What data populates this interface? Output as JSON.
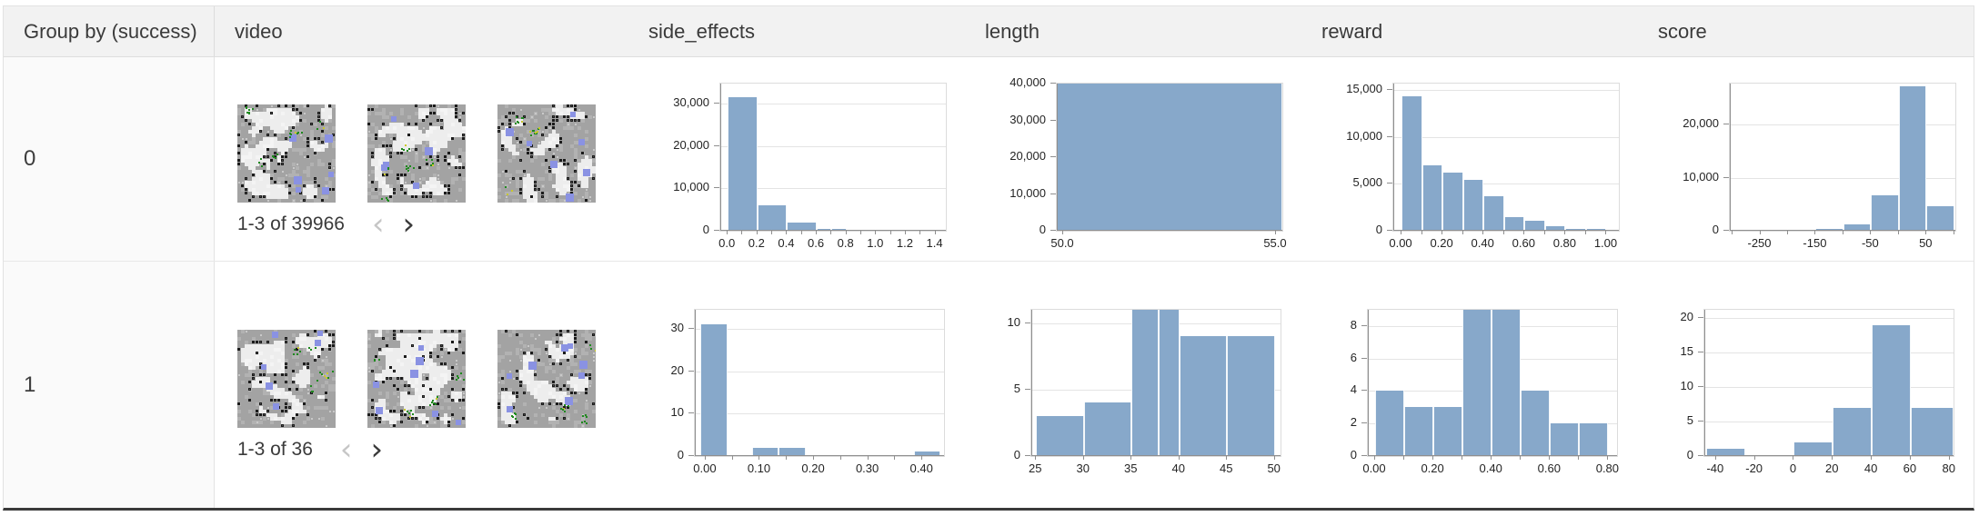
{
  "table": {
    "columns": [
      "Group by (success)",
      "video",
      "side_effects",
      "length",
      "reward",
      "score"
    ],
    "rows": [
      {
        "group": "0",
        "video": {
          "pagination": "1-3 of 39966",
          "thumbnails": 3,
          "prev_enabled": false,
          "next_enabled": true
        }
      },
      {
        "group": "1",
        "video": {
          "pagination": "1-3 of 36",
          "thumbnails": 3,
          "prev_enabled": false,
          "next_enabled": true
        }
      }
    ]
  },
  "icons": {
    "chevron_left": "‹",
    "chevron_right": "›"
  },
  "colors": {
    "histogram_bar": "#87a8ca",
    "header_bg": "#f2f2f2",
    "thumb_gray": "#a3a3a3",
    "thumb_light": "#ededed",
    "thumb_blue": "#8a92e3",
    "thumb_green": "#1f8a1f",
    "thumb_black": "#1b1b1b"
  },
  "chart_data": [
    {
      "type": "bar",
      "group": "0",
      "column": "side_effects",
      "xdomain": [
        -0.05,
        1.47
      ],
      "xticks": [
        [
          0.0,
          "0.0"
        ],
        [
          0.2,
          "0.2"
        ],
        [
          0.4,
          "0.4"
        ],
        [
          0.6,
          "0.6"
        ],
        [
          0.8,
          "0.8"
        ],
        [
          1.0,
          "1.0"
        ],
        [
          1.2,
          "1.2"
        ],
        [
          1.4,
          "1.4"
        ]
      ],
      "minor_xticks": [
        0.1,
        0.3,
        0.5,
        0.7,
        0.9,
        1.1,
        1.3
      ],
      "ymax": 34700,
      "yticks": [
        [
          0,
          "0"
        ],
        [
          10000,
          "10,000"
        ],
        [
          20000,
          "20,000"
        ],
        [
          30000,
          "30,000"
        ]
      ],
      "bars": [
        [
          0,
          0.2,
          31500
        ],
        [
          0.2,
          0.4,
          6100
        ],
        [
          0.4,
          0.6,
          2000
        ],
        [
          0.6,
          0.7,
          350
        ],
        [
          0.7,
          0.8,
          500
        ],
        [
          0.8,
          1.0,
          150
        ],
        [
          1.0,
          1.2,
          80
        ],
        [
          1.2,
          1.4,
          60
        ]
      ]
    },
    {
      "type": "bar",
      "group": "0",
      "column": "length",
      "xdomain": [
        49.85,
        55.15
      ],
      "xticks": [
        [
          50,
          "50.0"
        ],
        [
          55,
          "55.0"
        ]
      ],
      "minor_xticks": [],
      "ymax": 40000,
      "yticks": [
        [
          0,
          "0"
        ],
        [
          10000,
          "10,000"
        ],
        [
          20000,
          "20,000"
        ],
        [
          30000,
          "30,000"
        ],
        [
          40000,
          "40,000"
        ]
      ],
      "bars": [
        [
          49.85,
          55.15,
          40000
        ]
      ]
    },
    {
      "type": "bar",
      "group": "0",
      "column": "reward",
      "xdomain": [
        -0.04,
        1.06
      ],
      "xticks": [
        [
          0,
          "0.00"
        ],
        [
          0.2,
          "0.20"
        ],
        [
          0.4,
          "0.40"
        ],
        [
          0.6,
          "0.60"
        ],
        [
          0.8,
          "0.80"
        ],
        [
          1.0,
          "1.00"
        ]
      ],
      "minor_xticks": [
        0.1,
        0.3,
        0.5,
        0.7,
        0.9
      ],
      "ymax": 15700,
      "yticks": [
        [
          0,
          "0"
        ],
        [
          5000,
          "5,000"
        ],
        [
          10000,
          "10,000"
        ],
        [
          15000,
          "15,000"
        ]
      ],
      "bars": [
        [
          0,
          0.1,
          14300
        ],
        [
          0.1,
          0.2,
          7000
        ],
        [
          0.2,
          0.3,
          6200
        ],
        [
          0.3,
          0.4,
          5400
        ],
        [
          0.4,
          0.5,
          3700
        ],
        [
          0.5,
          0.6,
          1500
        ],
        [
          0.6,
          0.7,
          1100
        ],
        [
          0.7,
          0.8,
          500
        ],
        [
          0.8,
          0.9,
          200
        ],
        [
          0.9,
          1.0,
          150
        ]
      ]
    },
    {
      "type": "bar",
      "group": "0",
      "column": "score",
      "xdomain": [
        -305,
        102
      ],
      "xticks": [
        [
          -250,
          "-250"
        ],
        [
          -150,
          "-150"
        ],
        [
          -50,
          "-50"
        ],
        [
          50,
          "50"
        ]
      ],
      "minor_xticks": [
        -300,
        -200,
        -100,
        0,
        100
      ],
      "ymax": 27700,
      "yticks": [
        [
          0,
          "0"
        ],
        [
          10000,
          "10,000"
        ],
        [
          20000,
          "20,000"
        ]
      ],
      "bars": [
        [
          -300,
          -250,
          80
        ],
        [
          -250,
          -200,
          120
        ],
        [
          -200,
          -150,
          180
        ],
        [
          -150,
          -100,
          260
        ],
        [
          -100,
          -50,
          1200
        ],
        [
          -50,
          0,
          6700
        ],
        [
          0,
          50,
          27200
        ],
        [
          50,
          100,
          4700
        ]
      ]
    },
    {
      "type": "bar",
      "group": "1",
      "column": "side_effects",
      "xdomain": [
        -0.02,
        0.44
      ],
      "xticks": [
        [
          0,
          "0.00"
        ],
        [
          0.1,
          "0.10"
        ],
        [
          0.2,
          "0.20"
        ],
        [
          0.3,
          "0.30"
        ],
        [
          0.4,
          "0.40"
        ]
      ],
      "minor_xticks": [
        0.05,
        0.15,
        0.25,
        0.35
      ],
      "ymax": 34.5,
      "yticks": [
        [
          0,
          "0"
        ],
        [
          10,
          "10"
        ],
        [
          20,
          "20"
        ],
        [
          30,
          "30"
        ]
      ],
      "bars": [
        [
          -0.01,
          0.04,
          31
        ],
        [
          0.085,
          0.135,
          2
        ],
        [
          0.135,
          0.185,
          2
        ],
        [
          0.385,
          0.433,
          1
        ]
      ]
    },
    {
      "type": "bar",
      "group": "1",
      "column": "length",
      "xdomain": [
        24.5,
        50.6
      ],
      "xticks": [
        [
          25,
          "25"
        ],
        [
          30,
          "30"
        ],
        [
          35,
          "35"
        ],
        [
          40,
          "40"
        ],
        [
          45,
          "45"
        ],
        [
          50,
          "50"
        ]
      ],
      "minor_xticks": [],
      "ymax": 11,
      "yticks": [
        [
          0,
          "0"
        ],
        [
          5,
          "5"
        ],
        [
          10,
          "10"
        ]
      ],
      "bars": [
        [
          25,
          30,
          3
        ],
        [
          30,
          35,
          4
        ],
        [
          35,
          37.8,
          11
        ],
        [
          37.8,
          40,
          11
        ],
        [
          40,
          45,
          9
        ],
        [
          45,
          50,
          9
        ]
      ]
    },
    {
      "type": "bar",
      "group": "1",
      "column": "reward",
      "xdomain": [
        -0.025,
        0.83
      ],
      "xticks": [
        [
          0,
          "0.00"
        ],
        [
          0.2,
          "0.20"
        ],
        [
          0.4,
          "0.40"
        ],
        [
          0.6,
          "0.60"
        ],
        [
          0.8,
          "0.80"
        ]
      ],
      "minor_xticks": [
        0.1,
        0.3,
        0.5,
        0.7
      ],
      "ymax": 9,
      "yticks": [
        [
          0,
          "0"
        ],
        [
          2,
          "2"
        ],
        [
          4,
          "4"
        ],
        [
          6,
          "6"
        ],
        [
          8,
          "8"
        ]
      ],
      "bars": [
        [
          0,
          0.1,
          4
        ],
        [
          0.1,
          0.2,
          3
        ],
        [
          0.2,
          0.3,
          3
        ],
        [
          0.3,
          0.4,
          9
        ],
        [
          0.4,
          0.5,
          9
        ],
        [
          0.5,
          0.6,
          4
        ],
        [
          0.6,
          0.7,
          2
        ],
        [
          0.7,
          0.8,
          2
        ]
      ]
    },
    {
      "type": "bar",
      "group": "1",
      "column": "score",
      "xdomain": [
        -46,
        82
      ],
      "xticks": [
        [
          -40,
          "-40"
        ],
        [
          -20,
          "-20"
        ],
        [
          0,
          "0"
        ],
        [
          20,
          "20"
        ],
        [
          40,
          "40"
        ],
        [
          60,
          "60"
        ],
        [
          80,
          "80"
        ]
      ],
      "minor_xticks": [],
      "ymax": 21.2,
      "yticks": [
        [
          0,
          "0"
        ],
        [
          5,
          "5"
        ],
        [
          10,
          "10"
        ],
        [
          15,
          "15"
        ],
        [
          20,
          "20"
        ]
      ],
      "bars": [
        [
          -45,
          -25,
          1
        ],
        [
          0,
          20,
          2
        ],
        [
          20,
          40,
          7
        ],
        [
          40,
          60,
          19
        ],
        [
          60,
          82,
          7
        ]
      ]
    }
  ]
}
